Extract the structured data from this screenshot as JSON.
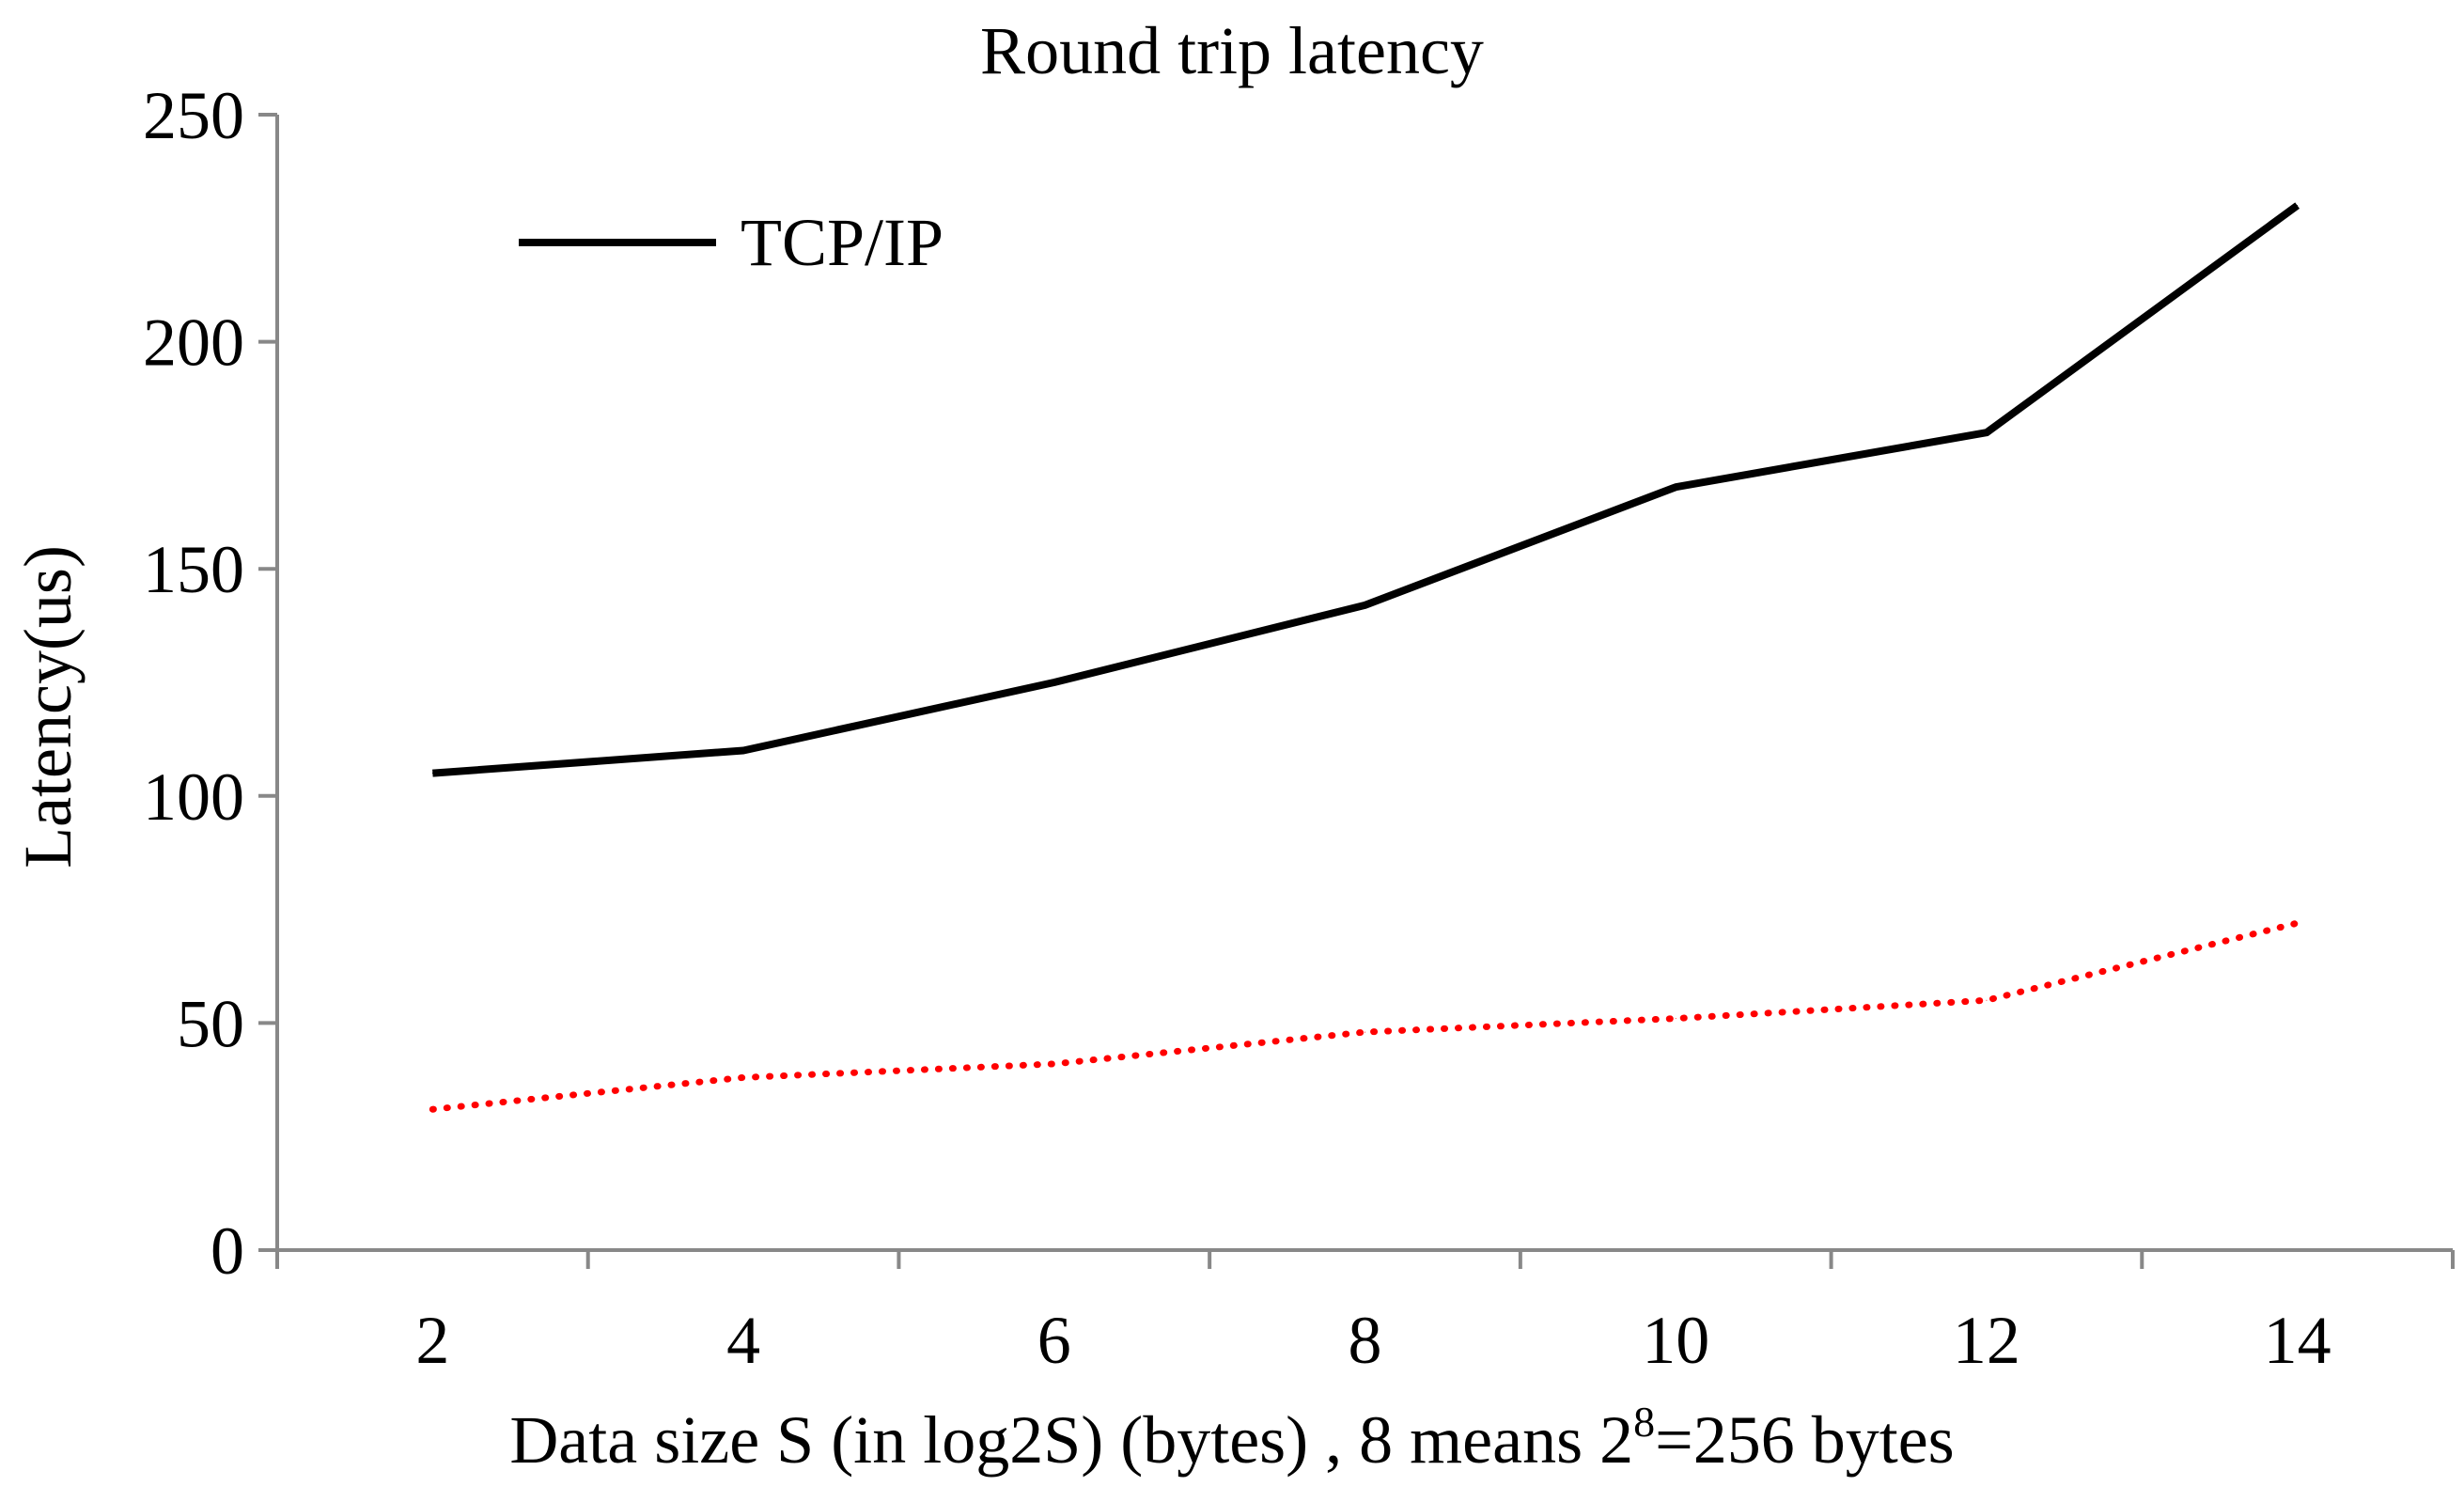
{
  "chart_data": {
    "type": "line",
    "title": "Round trip latency",
    "xlabel": "Data size S (in log2S) (bytes) , 8 means 2",
    "xlabel_sup": "8",
    "xlabel_suffix": "=256 bytes",
    "ylabel": "Latency(us)",
    "x": [
      2,
      4,
      6,
      8,
      10,
      12,
      14
    ],
    "xticks": [
      "2",
      "4",
      "6",
      "8",
      "10",
      "12",
      "14"
    ],
    "yticks": [
      "0",
      "50",
      "100",
      "150",
      "200",
      "250"
    ],
    "ylim": [
      0,
      250
    ],
    "legend_position": "top-left",
    "series": [
      {
        "name": "TCP/IP",
        "color": "#000000",
        "style": "solid",
        "values": [
          105,
          110,
          125,
          142,
          168,
          180,
          230
        ]
      },
      {
        "name": "",
        "color": "#ff0000",
        "style": "dotted",
        "values": [
          31,
          38,
          41,
          48,
          51,
          55,
          72
        ]
      }
    ]
  }
}
